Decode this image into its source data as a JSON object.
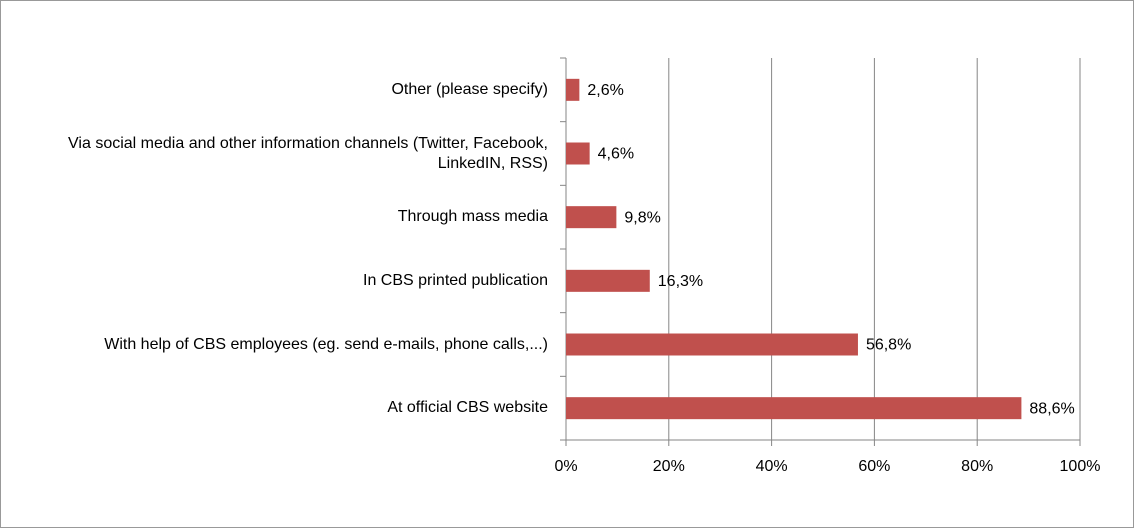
{
  "chart_data": {
    "type": "bar",
    "orientation": "horizontal",
    "categories": [
      "Other (please specify)",
      "Via social media and other information channels (Twitter, Facebook, LinkedIN, RSS)",
      "Through mass media",
      "In CBS printed publication",
      "With help of CBS employees (eg. send e-mails, phone calls,...)",
      "At official CBS website"
    ],
    "values": [
      2.6,
      4.6,
      9.8,
      16.3,
      56.8,
      88.6
    ],
    "value_labels": [
      "2,6%",
      "4,6%",
      "9,8%",
      "16,3%",
      "56,8%",
      "88,6%"
    ],
    "color": "#c0504d",
    "xlim": [
      0,
      100
    ],
    "xticks": [
      {
        "value": 0,
        "label": "0%"
      },
      {
        "value": 20,
        "label": "20%"
      },
      {
        "value": 40,
        "label": "40%"
      },
      {
        "value": 60,
        "label": "60%"
      },
      {
        "value": 80,
        "label": "80%"
      },
      {
        "value": 100,
        "label": "100%"
      }
    ],
    "grid": true
  }
}
